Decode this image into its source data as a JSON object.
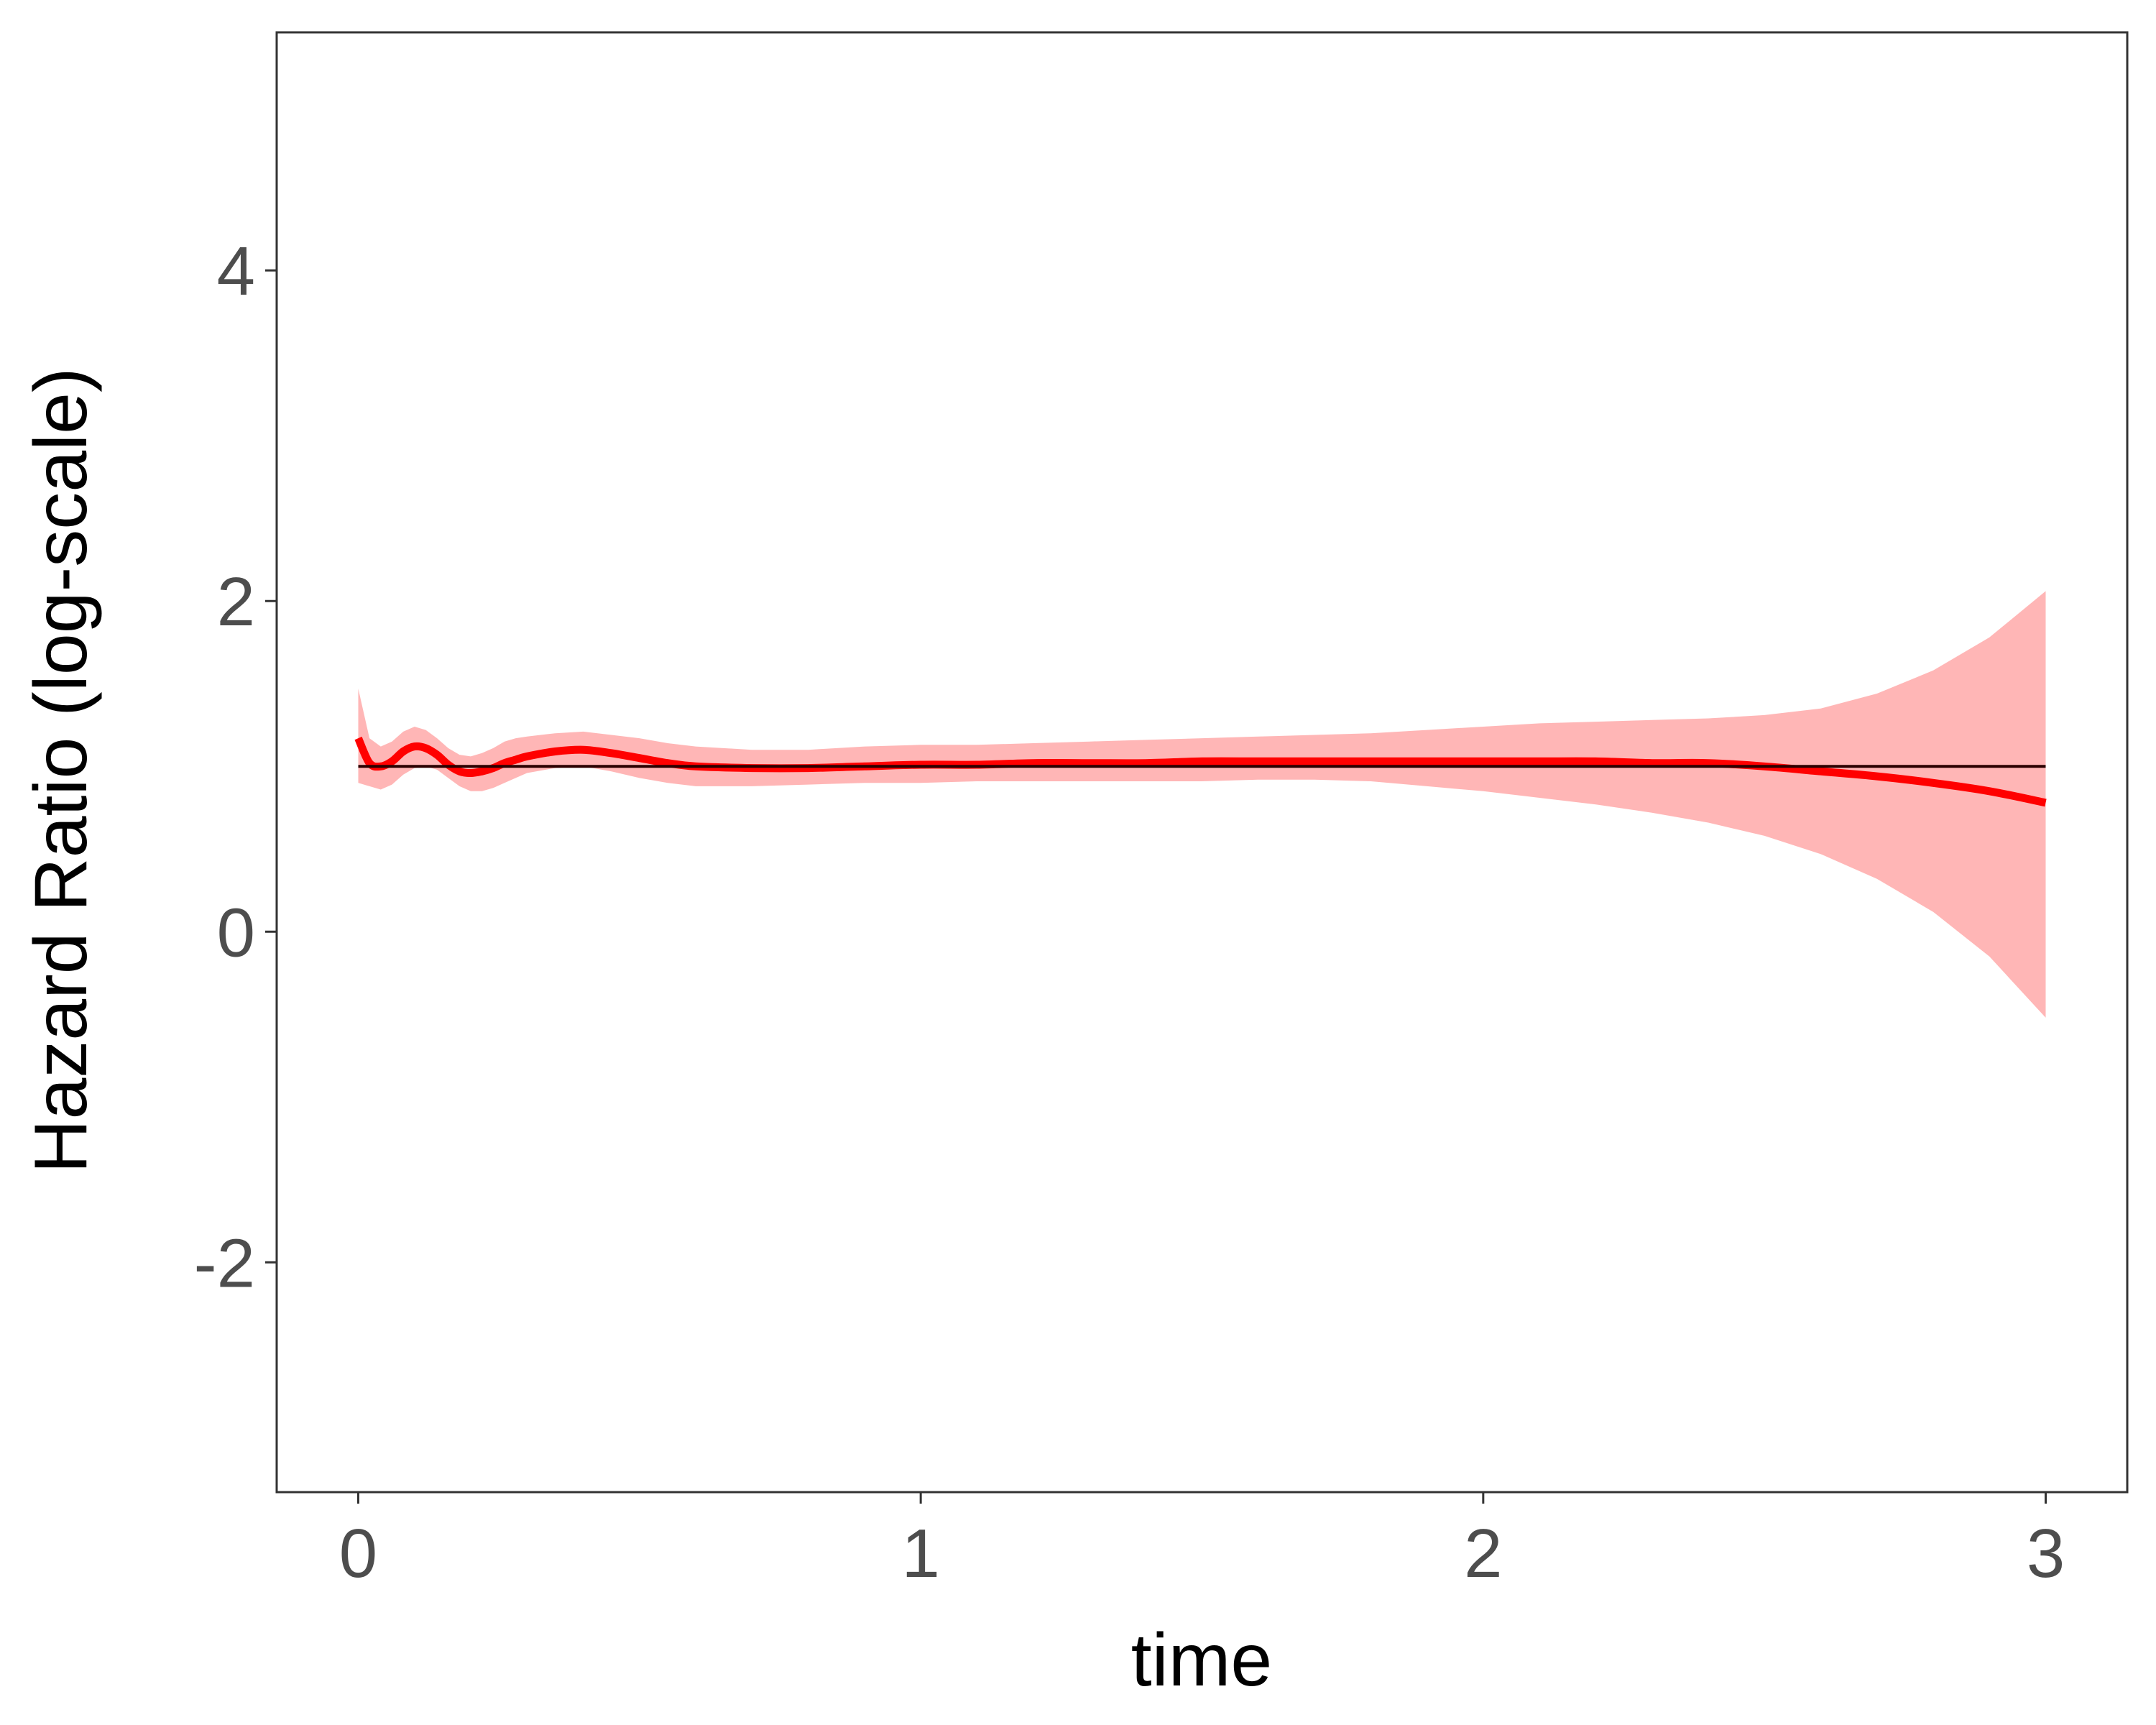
{
  "chart_data": {
    "type": "line",
    "title": "",
    "xlabel": "time",
    "ylabel": "Hazard Ratio (log-scale)",
    "xlim": [
      -0.145,
      3.145
    ],
    "ylim": [
      -3.39,
      5.44
    ],
    "x_ticks": [
      0,
      1,
      2,
      3
    ],
    "x_tick_labels": [
      "0",
      "1",
      "2",
      "3"
    ],
    "y_ticks": [
      -2,
      0,
      2,
      4
    ],
    "y_tick_labels": [
      "-2",
      "0",
      "2",
      "4"
    ],
    "grid": false,
    "legend": "none",
    "colors": {
      "estimate": "#ff0000",
      "band": "#ffb6b6",
      "reference": "#2b0000",
      "axis": "#333333",
      "tick_label": "#4d4d4d"
    },
    "reference_line": {
      "y": 1.0
    },
    "series": [
      {
        "x": [
          0.0,
          0.02,
          0.04,
          0.06,
          0.08,
          0.1,
          0.12,
          0.14,
          0.16,
          0.18,
          0.2,
          0.22,
          0.24,
          0.26,
          0.28,
          0.3,
          0.35,
          0.4,
          0.45,
          0.5,
          0.55,
          0.6,
          0.7,
          0.8,
          0.9,
          1.0,
          1.1,
          1.2,
          1.3,
          1.4,
          1.5,
          1.6,
          1.7,
          1.8,
          1.9,
          2.0,
          2.1,
          2.2,
          2.3,
          2.4,
          2.5,
          2.6,
          2.7,
          2.8,
          2.9,
          3.0
        ],
        "y": [
          1.17,
          1.02,
          1.0,
          1.03,
          1.09,
          1.12,
          1.11,
          1.07,
          1.01,
          0.97,
          0.96,
          0.97,
          0.99,
          1.02,
          1.04,
          1.06,
          1.09,
          1.1,
          1.08,
          1.05,
          1.02,
          1.0,
          0.99,
          0.99,
          1.0,
          1.01,
          1.01,
          1.02,
          1.02,
          1.02,
          1.03,
          1.03,
          1.03,
          1.03,
          1.03,
          1.03,
          1.03,
          1.03,
          1.02,
          1.02,
          1.0,
          0.97,
          0.94,
          0.9,
          0.85,
          0.78
        ],
        "lower": [
          0.9,
          0.88,
          0.86,
          0.89,
          0.95,
          0.99,
          1.0,
          0.98,
          0.93,
          0.88,
          0.85,
          0.85,
          0.87,
          0.9,
          0.93,
          0.96,
          0.99,
          1.0,
          0.97,
          0.93,
          0.9,
          0.88,
          0.88,
          0.89,
          0.9,
          0.9,
          0.91,
          0.91,
          0.91,
          0.91,
          0.91,
          0.92,
          0.92,
          0.91,
          0.88,
          0.85,
          0.81,
          0.77,
          0.72,
          0.66,
          0.58,
          0.47,
          0.32,
          0.12,
          -0.15,
          -0.52
        ],
        "upper": [
          1.47,
          1.17,
          1.12,
          1.15,
          1.21,
          1.24,
          1.22,
          1.17,
          1.11,
          1.07,
          1.06,
          1.08,
          1.11,
          1.15,
          1.17,
          1.18,
          1.2,
          1.21,
          1.19,
          1.17,
          1.14,
          1.12,
          1.1,
          1.1,
          1.12,
          1.13,
          1.13,
          1.14,
          1.15,
          1.16,
          1.17,
          1.18,
          1.19,
          1.2,
          1.22,
          1.24,
          1.26,
          1.27,
          1.28,
          1.29,
          1.31,
          1.35,
          1.44,
          1.58,
          1.78,
          2.06
        ]
      }
    ]
  }
}
